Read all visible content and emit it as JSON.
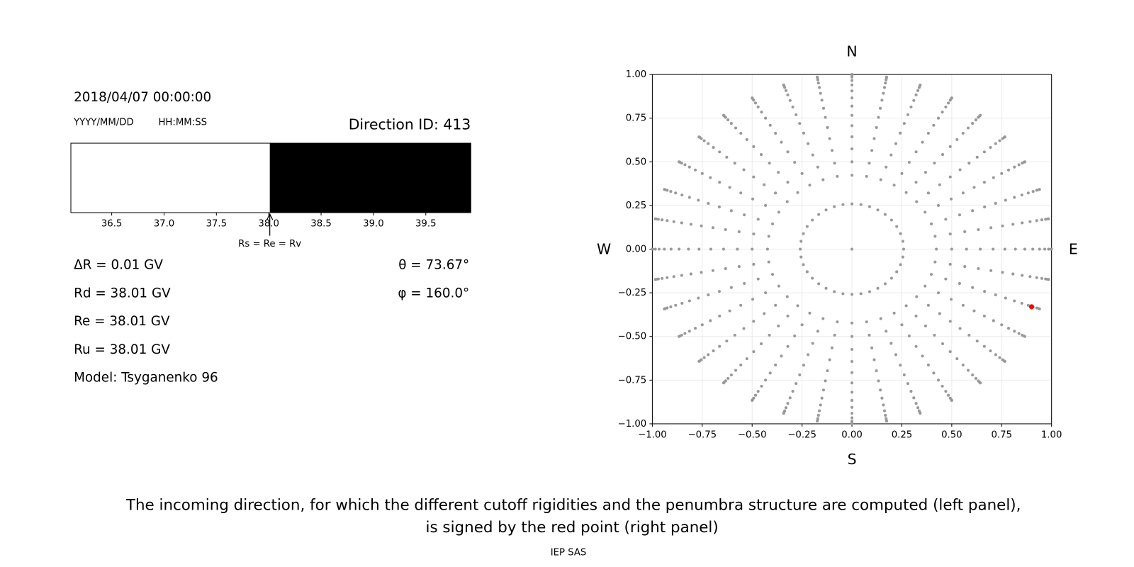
{
  "header": {
    "datetime": "2018/04/07 00:00:00",
    "date_format": "YYYY/MM/DD",
    "time_format": "HH:MM:SS",
    "direction_id": "Direction ID: 413"
  },
  "chart_data": [
    {
      "type": "penumbra",
      "xlim": [
        36.11,
        39.93
      ],
      "xticks": [
        36.5,
        {
          "value": 37.0,
          "label": "37.0"
        },
        37.5,
        {
          "value": 38.0,
          "label": "38.0"
        },
        38.5,
        {
          "value": 39.0,
          "label": "39.0"
        },
        39.5
      ],
      "cutoff": 38.01,
      "annotation": "Rs = Re = Rv",
      "allowed_color": "#ffffff",
      "forbidden_color": "#000000"
    },
    {
      "type": "polar-scatter",
      "xlim": [
        -1,
        1
      ],
      "ylim": [
        -1,
        1
      ],
      "xticks": [
        {
          "value": -1,
          "label": "−1.00"
        },
        {
          "value": -0.75,
          "label": "−0.75"
        },
        {
          "value": -0.5,
          "label": "−0.50"
        },
        {
          "value": -0.25,
          "label": "−0.25"
        },
        {
          "value": 0,
          "label": "0.00"
        },
        0.25,
        {
          "value": 0.5,
          "label": "0.50"
        },
        0.75,
        {
          "value": 1,
          "label": "1.00"
        }
      ],
      "yticks": [
        {
          "value": -1,
          "label": "−1.00"
        },
        {
          "value": -0.75,
          "label": "−0.75"
        },
        {
          "value": -0.5,
          "label": "−0.50"
        },
        {
          "value": -0.25,
          "label": "−0.25"
        },
        {
          "value": 0,
          "label": "0.00"
        },
        0.25,
        {
          "value": 0.5,
          "label": "0.50"
        },
        0.75,
        {
          "value": 1,
          "label": "1.00"
        }
      ],
      "grid": true,
      "azimuths": [
        0,
        10,
        20,
        30,
        40,
        50,
        60,
        70,
        80,
        90,
        100,
        110,
        120,
        130,
        140,
        150,
        160,
        170,
        180,
        190,
        200,
        210,
        220,
        230,
        240,
        250,
        260,
        270,
        280,
        290,
        300,
        310,
        320,
        330,
        340,
        350
      ],
      "radii": [
        0.259,
        0.423,
        0.5,
        0.574,
        0.643,
        0.707,
        0.766,
        0.819,
        0.866,
        0.906,
        0.94,
        0.966,
        0.985,
        0.996,
        1.0
      ],
      "color": "#999999",
      "center": {
        "x": 0,
        "y": 0
      },
      "highlight": {
        "x": 0.9,
        "y": -0.33,
        "color": "#ff0000"
      },
      "north": "N",
      "south": "S",
      "west": "W",
      "east": "E"
    }
  ],
  "info": {
    "delta_r": "ΔR = 0.01 GV",
    "rd": "Rd = 38.01 GV",
    "re": "Re = 38.01 GV",
    "ru": "Ru = 38.01 GV",
    "model": "Model: Tsyganenko 96",
    "theta": "θ = 73.67°",
    "phi": "φ = 160.0°"
  },
  "caption": [
    "The incoming direction, for which the different cutoff rigidities and the penumbra structure are computed (left panel),",
    "is signed by the red point (right panel)"
  ],
  "footer": "IEP SAS"
}
